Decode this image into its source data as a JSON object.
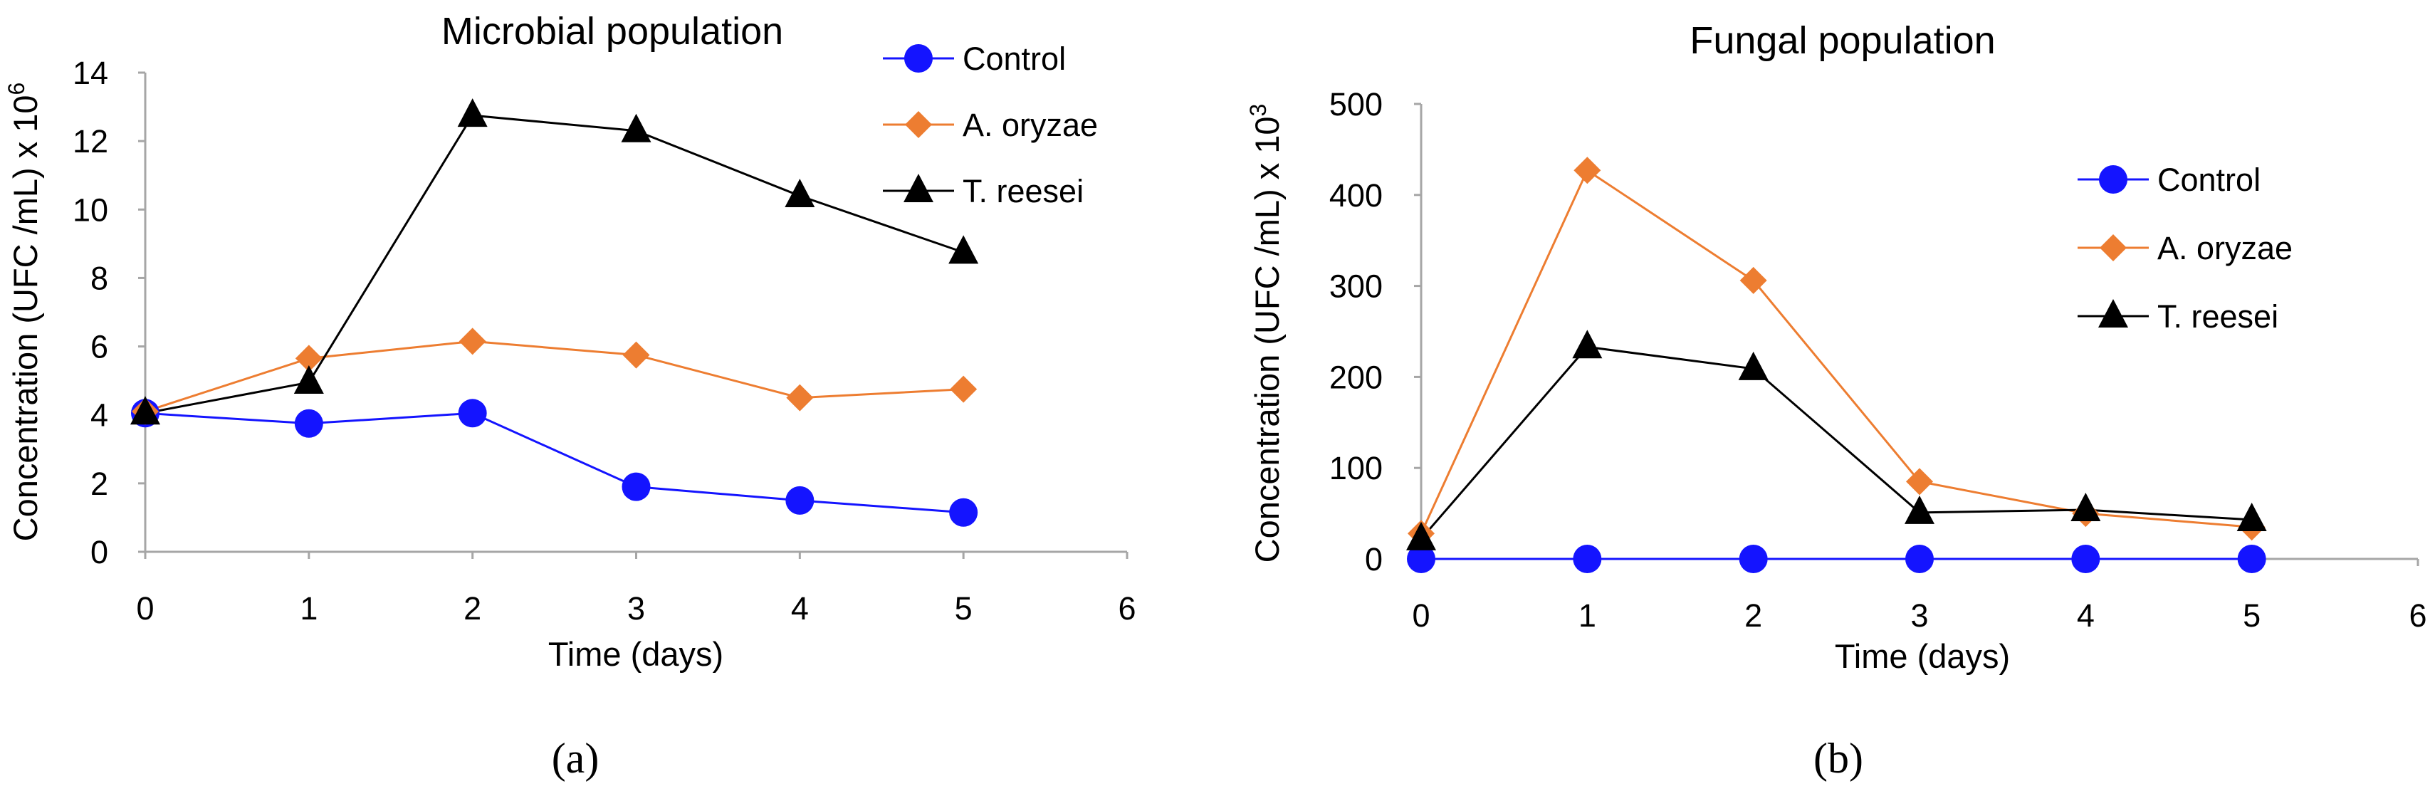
{
  "figure": {
    "panels": [
      "(a)",
      "(b)"
    ]
  },
  "chart_data": [
    {
      "type": "line",
      "title": "Microbial population",
      "xlabel": "Time (days)",
      "ylabel": "Concentration (UFC /mL) x 10",
      "ylabel_exponent": "6",
      "xlim": [
        0,
        6
      ],
      "ylim": [
        0,
        14
      ],
      "x_ticks": [
        "0",
        "1",
        "2",
        "3",
        "4",
        "5",
        "6"
      ],
      "y_ticks": [
        "0",
        "2",
        "4",
        "6",
        "8",
        "10",
        "12",
        "14"
      ],
      "grid": false,
      "legend_position": "top-right",
      "x": [
        0,
        1,
        2,
        3,
        4,
        5
      ],
      "series": [
        {
          "name": "Control",
          "marker": "circle",
          "color": "#1414ff",
          "values": [
            4.05,
            3.75,
            4.05,
            1.9,
            1.5,
            1.15
          ]
        },
        {
          "name": "A. oryzae",
          "marker": "diamond",
          "color": "#ed7d31",
          "values": [
            4.1,
            5.65,
            6.15,
            5.75,
            4.5,
            4.75
          ]
        },
        {
          "name": "T. reesei",
          "marker": "triangle",
          "color": "#000000",
          "values": [
            4.05,
            4.95,
            12.75,
            12.3,
            10.4,
            8.75
          ]
        }
      ]
    },
    {
      "type": "line",
      "title": "Fungal population",
      "xlabel": "Time (days)",
      "ylabel": "Concentration (UFC /mL) x 10",
      "ylabel_exponent": "3",
      "xlim": [
        0,
        6
      ],
      "ylim": [
        0,
        500
      ],
      "x_ticks": [
        "0",
        "1",
        "2",
        "3",
        "4",
        "5",
        "6"
      ],
      "y_ticks": [
        "0",
        "100",
        "200",
        "300",
        "400",
        "500"
      ],
      "grid": false,
      "legend_position": "right",
      "x": [
        0,
        1,
        2,
        3,
        4,
        5
      ],
      "series": [
        {
          "name": "Control",
          "marker": "circle",
          "color": "#1414ff",
          "values": [
            0,
            0,
            0,
            0,
            0,
            0
          ]
        },
        {
          "name": "A. oryzae",
          "marker": "diamond",
          "color": "#ed7d31",
          "values": [
            28,
            427,
            306,
            85,
            50,
            35
          ]
        },
        {
          "name": "T. reesei",
          "marker": "triangle",
          "color": "#000000",
          "values": [
            22,
            233,
            209,
            51,
            54,
            43
          ]
        }
      ]
    }
  ]
}
